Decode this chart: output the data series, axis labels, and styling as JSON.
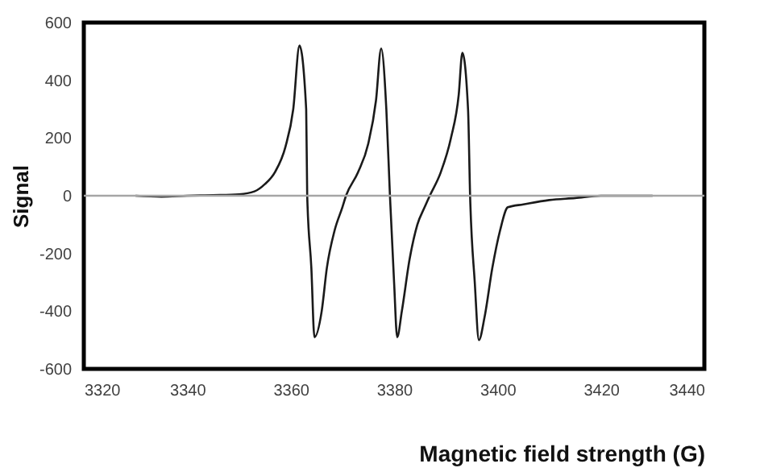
{
  "chart_data": {
    "type": "line",
    "xlabel": "Magnetic field strength (G)",
    "ylabel": "Signal",
    "xlim": [
      3320,
      3440
    ],
    "xticks": [
      3320,
      3340,
      3360,
      3380,
      3400,
      3420,
      3440
    ],
    "ylim": [
      -600,
      600
    ],
    "yticks": [
      -600,
      -400,
      -200,
      0,
      200,
      400,
      600
    ],
    "grid": false,
    "marker": "none",
    "line_style": "solid",
    "ref_lines": [
      {
        "axis": "y",
        "value": 0,
        "color": "#a6a6a6"
      }
    ],
    "series": [
      {
        "color": "#1a1a1a",
        "x": [
          3330,
          3335,
          3340,
          3345,
          3350,
          3353,
          3355,
          3357,
          3359,
          3360.5,
          3361.7,
          3363,
          3363.2,
          3364,
          3364.6,
          3366,
          3367,
          3368.5,
          3370,
          3370.7,
          3373,
          3375,
          3376.5,
          3377.5,
          3378.5,
          3379.2,
          3380,
          3380.6,
          3381.5,
          3383,
          3384.5,
          3385.9,
          3386.9,
          3389,
          3391,
          3392.5,
          3393.2,
          3394.3,
          3394.7,
          3395.6,
          3396.4,
          3397.5,
          3399,
          3400.5,
          3402,
          3405,
          3410,
          3415,
          3420,
          3425,
          3430
        ],
        "values": [
          0,
          -3,
          0,
          2,
          5,
          15,
          40,
          83,
          170,
          300,
          520,
          300,
          0,
          -250,
          -490,
          -400,
          -250,
          -120,
          -40,
          0,
          80,
          180,
          330,
          510,
          300,
          0,
          -300,
          -490,
          -400,
          -220,
          -100,
          -40,
          0,
          80,
          200,
          350,
          495,
          300,
          0,
          -300,
          -500,
          -420,
          -250,
          -120,
          -40,
          -30,
          -15,
          -8,
          0,
          0,
          0
        ]
      }
    ]
  }
}
